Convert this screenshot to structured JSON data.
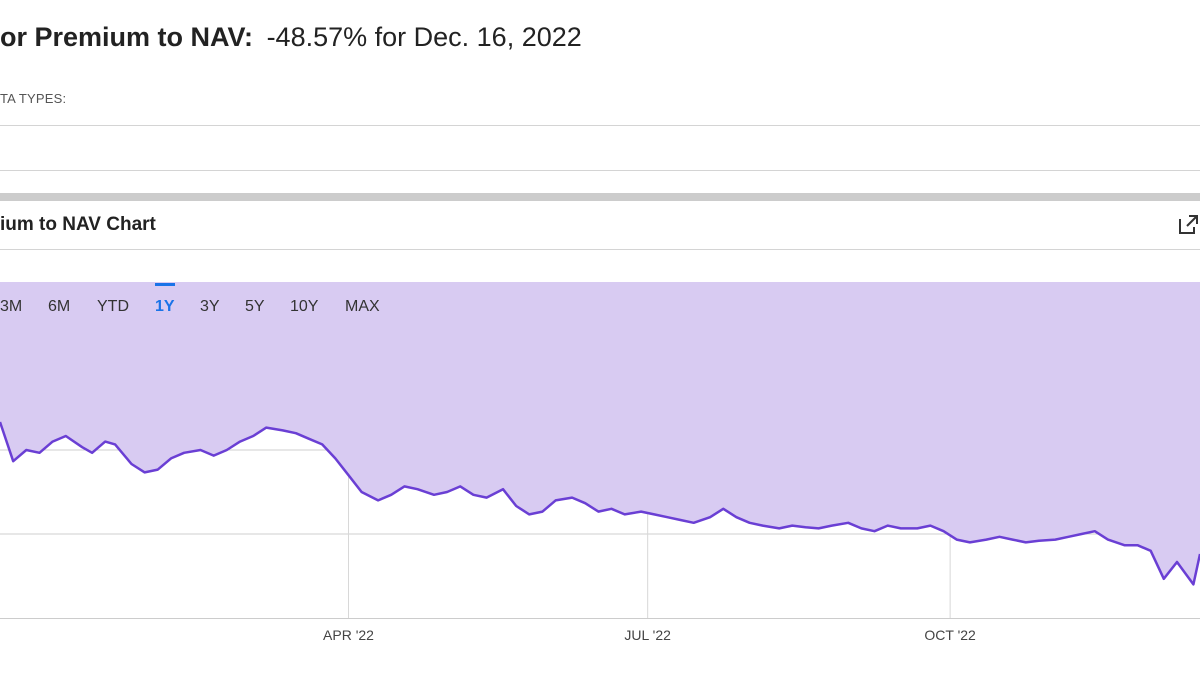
{
  "header": {
    "title_label": "or Premium to NAV:",
    "title_value": "-48.57% for Dec. 16, 2022",
    "data_types_label": "TA TYPES:"
  },
  "chart_panel": {
    "title": "ium to NAV Chart",
    "expand_icon": "external-link-icon"
  },
  "range_tabs": {
    "items": [
      "3M",
      "6M",
      "YTD",
      "1Y",
      "3Y",
      "5Y",
      "10Y",
      "MAX"
    ],
    "active": "1Y"
  },
  "colors": {
    "line": "#6a3fd4",
    "fill": "#d8cbf2",
    "active_tab": "#1a73e8"
  },
  "chart_data": {
    "type": "area",
    "x_ticks": [
      "APR '22",
      "JUL '22",
      "OCT '22"
    ],
    "x_start": "2021-12-16",
    "x_end": "2022-12-16",
    "tick_dates": [
      "2022-04-01",
      "2022-07-01",
      "2022-10-01"
    ],
    "grid": true,
    "y_unit": "%",
    "series": [
      {
        "name": "",
        "x": [
          "2021-12-16",
          "2021-12-20",
          "2021-12-24",
          "2021-12-28",
          "2022-01-01",
          "2022-01-05",
          "2022-01-10",
          "2022-01-13",
          "2022-01-17",
          "2022-01-20",
          "2022-01-25",
          "2022-01-29",
          "2022-02-02",
          "2022-02-06",
          "2022-02-10",
          "2022-02-15",
          "2022-02-19",
          "2022-02-23",
          "2022-02-27",
          "2022-03-03",
          "2022-03-07",
          "2022-03-12",
          "2022-03-16",
          "2022-03-20",
          "2022-03-24",
          "2022-03-28",
          "2022-04-01",
          "2022-04-05",
          "2022-04-10",
          "2022-04-14",
          "2022-04-18",
          "2022-04-22",
          "2022-04-27",
          "2022-05-01",
          "2022-05-05",
          "2022-05-09",
          "2022-05-13",
          "2022-05-18",
          "2022-05-22",
          "2022-05-26",
          "2022-05-30",
          "2022-06-03",
          "2022-06-08",
          "2022-06-12",
          "2022-06-16",
          "2022-06-20",
          "2022-06-24",
          "2022-06-29",
          "2022-07-03",
          "2022-07-07",
          "2022-07-11",
          "2022-07-15",
          "2022-07-20",
          "2022-07-24",
          "2022-07-28",
          "2022-08-01",
          "2022-08-05",
          "2022-08-10",
          "2022-08-14",
          "2022-08-18",
          "2022-08-22",
          "2022-08-26",
          "2022-08-31",
          "2022-09-04",
          "2022-09-08",
          "2022-09-12",
          "2022-09-16",
          "2022-09-21",
          "2022-09-25",
          "2022-09-29",
          "2022-10-03",
          "2022-10-07",
          "2022-10-12",
          "2022-10-16",
          "2022-10-20",
          "2022-10-24",
          "2022-10-28",
          "2022-11-02",
          "2022-11-06",
          "2022-11-10",
          "2022-11-14",
          "2022-11-18",
          "2022-11-23",
          "2022-11-27",
          "2022-12-01",
          "2022-12-05",
          "2022-12-09",
          "2022-12-14",
          "2022-12-16"
        ],
        "y": [
          -25.0,
          -32.0,
          -30.0,
          -30.5,
          -28.5,
          -27.5,
          -29.5,
          -30.5,
          -28.5,
          -29.0,
          -32.5,
          -34.0,
          -33.5,
          -31.5,
          -30.5,
          -30.0,
          -31.0,
          -30.0,
          -28.5,
          -27.5,
          -26.0,
          -26.5,
          -27.0,
          -28.0,
          -29.0,
          -31.5,
          -34.5,
          -37.5,
          -39.0,
          -38.0,
          -36.5,
          -37.0,
          -38.0,
          -37.5,
          -36.5,
          -38.0,
          -38.5,
          -37.0,
          -40.0,
          -41.5,
          -41.0,
          -39.0,
          -38.5,
          -39.5,
          -41.0,
          -40.5,
          -41.5,
          -41.0,
          -41.5,
          -42.0,
          -42.5,
          -43.0,
          -42.0,
          -40.5,
          -42.0,
          -43.0,
          -43.5,
          -44.0,
          -43.5,
          -43.8,
          -44.0,
          -43.5,
          -43.0,
          -44.0,
          -44.5,
          -43.5,
          -44.0,
          -44.0,
          -43.5,
          -44.5,
          -46.0,
          -46.5,
          -46.0,
          -45.5,
          -46.0,
          -46.5,
          -46.2,
          -46.0,
          -45.5,
          -45.0,
          -44.5,
          -46.0,
          -47.0,
          -47.0,
          -48.0,
          -53.0,
          -50.0,
          -54.0,
          -48.57
        ]
      }
    ]
  }
}
